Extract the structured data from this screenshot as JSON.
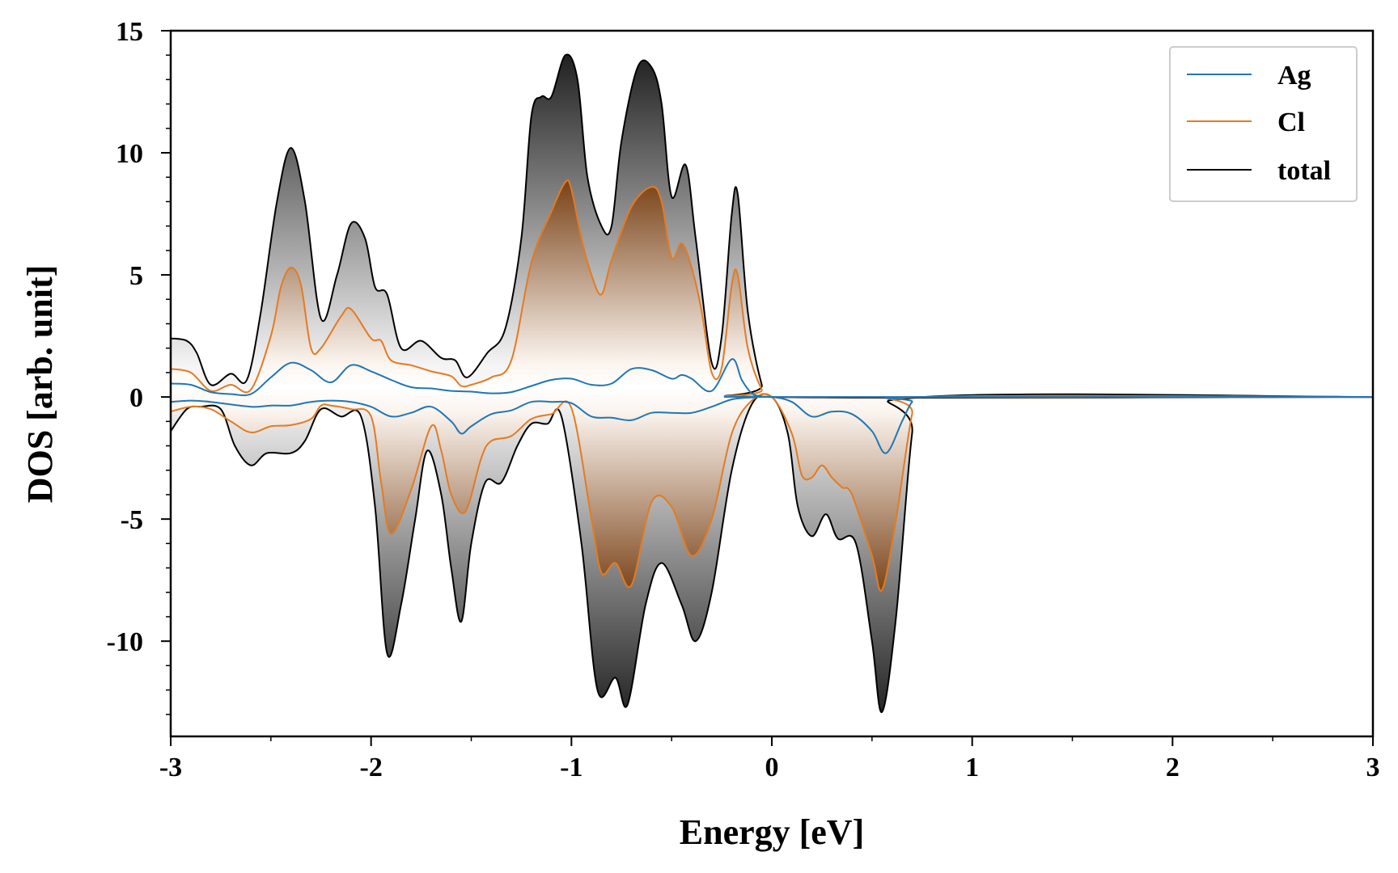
{
  "chart_data": {
    "type": "line",
    "title": "",
    "xlabel": "Energy [eV]",
    "ylabel": "DOS [arb. unit]",
    "xlim": [
      -3,
      3
    ],
    "ylim": [
      -13.9,
      15
    ],
    "x_ticks": [
      -3,
      -2,
      -1,
      0,
      1,
      2,
      3
    ],
    "x_tick_labels": [
      "-3",
      "-2",
      "-1",
      "0",
      "1",
      "2",
      "3"
    ],
    "y_ticks": [
      -10,
      -5,
      0,
      5,
      10,
      15
    ],
    "y_tick_labels": [
      "-10",
      "-5",
      "0",
      "5",
      "10",
      "15"
    ],
    "grid": false,
    "legend_position": "top-right",
    "series": [
      {
        "name": "Ag",
        "color": "#1f77b4",
        "up": [
          [
            -3,
            0.55
          ],
          [
            -2.9,
            0.5
          ],
          [
            -2.8,
            0.2
          ],
          [
            -2.7,
            0.12
          ],
          [
            -2.6,
            0.12
          ],
          [
            -2.5,
            0.8
          ],
          [
            -2.4,
            1.4
          ],
          [
            -2.3,
            1.1
          ],
          [
            -2.2,
            0.6
          ],
          [
            -2.1,
            1.3
          ],
          [
            -2.0,
            1.05
          ],
          [
            -1.9,
            0.7
          ],
          [
            -1.8,
            0.4
          ],
          [
            -1.7,
            0.35
          ],
          [
            -1.6,
            0.25
          ],
          [
            -1.5,
            0.22
          ],
          [
            -1.4,
            0.15
          ],
          [
            -1.3,
            0.2
          ],
          [
            -1.2,
            0.45
          ],
          [
            -1.1,
            0.7
          ],
          [
            -1.0,
            0.75
          ],
          [
            -0.9,
            0.5
          ],
          [
            -0.8,
            0.55
          ],
          [
            -0.7,
            1.15
          ],
          [
            -0.6,
            1.1
          ],
          [
            -0.5,
            0.75
          ],
          [
            -0.45,
            0.9
          ],
          [
            -0.4,
            0.75
          ],
          [
            -0.3,
            0.25
          ],
          [
            -0.2,
            1.55
          ],
          [
            -0.15,
            0.7
          ],
          [
            -0.1,
            0.15
          ],
          [
            -0.05,
            0.03
          ],
          [
            0,
            0
          ],
          [
            3,
            0
          ]
        ],
        "down": [
          [
            -3,
            -0.2
          ],
          [
            -2.9,
            -0.15
          ],
          [
            -2.8,
            -0.2
          ],
          [
            -2.6,
            -0.4
          ],
          [
            -2.5,
            -0.35
          ],
          [
            -2.4,
            -0.35
          ],
          [
            -2.3,
            -0.2
          ],
          [
            -2.2,
            -0.15
          ],
          [
            -2.1,
            -0.2
          ],
          [
            -2.0,
            -0.4
          ],
          [
            -1.9,
            -0.8
          ],
          [
            -1.8,
            -0.65
          ],
          [
            -1.7,
            -0.4
          ],
          [
            -1.6,
            -1.0
          ],
          [
            -1.55,
            -1.5
          ],
          [
            -1.5,
            -1.2
          ],
          [
            -1.4,
            -0.7
          ],
          [
            -1.3,
            -0.55
          ],
          [
            -1.2,
            -0.2
          ],
          [
            -1.1,
            -0.2
          ],
          [
            -1.0,
            -0.25
          ],
          [
            -0.9,
            -0.8
          ],
          [
            -0.8,
            -0.85
          ],
          [
            -0.7,
            -0.95
          ],
          [
            -0.6,
            -0.65
          ],
          [
            -0.5,
            -0.65
          ],
          [
            -0.4,
            -0.65
          ],
          [
            -0.3,
            -0.4
          ],
          [
            -0.2,
            -0.1
          ],
          [
            -0.1,
            -0.02
          ],
          [
            0,
            0
          ],
          [
            0.1,
            -0.2
          ],
          [
            0.2,
            -0.8
          ],
          [
            0.3,
            -0.6
          ],
          [
            0.4,
            -0.7
          ],
          [
            0.5,
            -1.4
          ],
          [
            0.57,
            -2.3
          ],
          [
            0.65,
            -1.0
          ],
          [
            0.7,
            -0.2
          ],
          [
            0.75,
            0
          ],
          [
            3,
            0
          ]
        ]
      },
      {
        "name": "Cl",
        "color": "#e37b22",
        "up": [
          [
            -3,
            1.15
          ],
          [
            -2.9,
            1.0
          ],
          [
            -2.8,
            0.25
          ],
          [
            -2.7,
            0.5
          ],
          [
            -2.6,
            0.3
          ],
          [
            -2.5,
            2.5
          ],
          [
            -2.45,
            4.5
          ],
          [
            -2.4,
            5.3
          ],
          [
            -2.35,
            4.6
          ],
          [
            -2.3,
            2.0
          ],
          [
            -2.25,
            2.0
          ],
          [
            -2.15,
            3.3
          ],
          [
            -2.1,
            3.6
          ],
          [
            -2.0,
            2.4
          ],
          [
            -1.95,
            2.3
          ],
          [
            -1.9,
            1.5
          ],
          [
            -1.8,
            1.3
          ],
          [
            -1.7,
            1.05
          ],
          [
            -1.6,
            0.85
          ],
          [
            -1.55,
            0.45
          ],
          [
            -1.5,
            0.5
          ],
          [
            -1.4,
            0.8
          ],
          [
            -1.3,
            1.5
          ],
          [
            -1.2,
            5.5
          ],
          [
            -1.1,
            7.6
          ],
          [
            -1.03,
            8.8
          ],
          [
            -1.0,
            8.5
          ],
          [
            -0.95,
            6.5
          ],
          [
            -0.9,
            5.0
          ],
          [
            -0.85,
            4.2
          ],
          [
            -0.8,
            5.6
          ],
          [
            -0.7,
            7.8
          ],
          [
            -0.6,
            8.6
          ],
          [
            -0.55,
            8.0
          ],
          [
            -0.5,
            5.7
          ],
          [
            -0.45,
            6.3
          ],
          [
            -0.4,
            5.3
          ],
          [
            -0.35,
            3.5
          ],
          [
            -0.3,
            1.0
          ],
          [
            -0.25,
            1.2
          ],
          [
            -0.2,
            4.6
          ],
          [
            -0.17,
            5.0
          ],
          [
            -0.12,
            2.0
          ],
          [
            -0.05,
            0.3
          ],
          [
            0,
            0
          ],
          [
            3,
            0
          ]
        ],
        "down": [
          [
            -3,
            -0.6
          ],
          [
            -2.9,
            -0.4
          ],
          [
            -2.8,
            -0.5
          ],
          [
            -2.7,
            -1.0
          ],
          [
            -2.6,
            -1.45
          ],
          [
            -2.5,
            -1.2
          ],
          [
            -2.4,
            -1.15
          ],
          [
            -2.3,
            -0.9
          ],
          [
            -2.25,
            -0.35
          ],
          [
            -2.2,
            -0.35
          ],
          [
            -2.1,
            -0.5
          ],
          [
            -2.0,
            -0.8
          ],
          [
            -1.95,
            -3.5
          ],
          [
            -1.9,
            -5.6
          ],
          [
            -1.8,
            -3.8
          ],
          [
            -1.7,
            -1.2
          ],
          [
            -1.65,
            -2.2
          ],
          [
            -1.6,
            -4.0
          ],
          [
            -1.53,
            -4.7
          ],
          [
            -1.45,
            -2.5
          ],
          [
            -1.4,
            -1.8
          ],
          [
            -1.3,
            -1.6
          ],
          [
            -1.2,
            -0.9
          ],
          [
            -1.1,
            -0.7
          ],
          [
            -1.0,
            -0.45
          ],
          [
            -0.9,
            -5.0
          ],
          [
            -0.85,
            -7.2
          ],
          [
            -0.78,
            -6.8
          ],
          [
            -0.7,
            -7.7
          ],
          [
            -0.6,
            -4.3
          ],
          [
            -0.5,
            -4.5
          ],
          [
            -0.4,
            -6.5
          ],
          [
            -0.3,
            -5.0
          ],
          [
            -0.2,
            -1.5
          ],
          [
            -0.1,
            -0.15
          ],
          [
            0,
            0
          ],
          [
            0.1,
            -1.5
          ],
          [
            0.15,
            -3.2
          ],
          [
            0.2,
            -3.3
          ],
          [
            0.25,
            -2.8
          ],
          [
            0.3,
            -3.3
          ],
          [
            0.35,
            -3.7
          ],
          [
            0.4,
            -4.0
          ],
          [
            0.5,
            -6.5
          ],
          [
            0.55,
            -7.9
          ],
          [
            0.62,
            -5.0
          ],
          [
            0.7,
            -0.7
          ],
          [
            0.75,
            0
          ],
          [
            3,
            0
          ]
        ]
      },
      {
        "name": "total",
        "color": "#000000",
        "up": [
          [
            -3,
            2.4
          ],
          [
            -2.92,
            2.3
          ],
          [
            -2.87,
            1.8
          ],
          [
            -2.8,
            0.5
          ],
          [
            -2.7,
            0.95
          ],
          [
            -2.62,
            0.7
          ],
          [
            -2.55,
            3.5
          ],
          [
            -2.47,
            8.0
          ],
          [
            -2.4,
            10.2
          ],
          [
            -2.33,
            8.0
          ],
          [
            -2.25,
            3.2
          ],
          [
            -2.17,
            5.0
          ],
          [
            -2.1,
            7.1
          ],
          [
            -2.03,
            6.5
          ],
          [
            -1.98,
            4.5
          ],
          [
            -1.92,
            4.2
          ],
          [
            -1.85,
            2.0
          ],
          [
            -1.75,
            2.3
          ],
          [
            -1.65,
            1.6
          ],
          [
            -1.58,
            1.5
          ],
          [
            -1.52,
            0.8
          ],
          [
            -1.42,
            1.8
          ],
          [
            -1.33,
            2.8
          ],
          [
            -1.25,
            6.5
          ],
          [
            -1.2,
            11.5
          ],
          [
            -1.15,
            12.3
          ],
          [
            -1.1,
            12.3
          ],
          [
            -1.03,
            14.0
          ],
          [
            -0.97,
            13.0
          ],
          [
            -0.92,
            9.0
          ],
          [
            -0.85,
            7.0
          ],
          [
            -0.8,
            7.0
          ],
          [
            -0.75,
            10.5
          ],
          [
            -0.67,
            13.5
          ],
          [
            -0.6,
            13.5
          ],
          [
            -0.55,
            12.0
          ],
          [
            -0.5,
            8.2
          ],
          [
            -0.43,
            9.5
          ],
          [
            -0.38,
            6.5
          ],
          [
            -0.3,
            1.4
          ],
          [
            -0.25,
            2.5
          ],
          [
            -0.2,
            7.5
          ],
          [
            -0.17,
            8.3
          ],
          [
            -0.12,
            3.5
          ],
          [
            -0.05,
            0.5
          ],
          [
            0,
            0
          ],
          [
            3,
            0
          ]
        ],
        "down": [
          [
            -3,
            -1.4
          ],
          [
            -2.92,
            -0.5
          ],
          [
            -2.85,
            -0.4
          ],
          [
            -2.75,
            -0.5
          ],
          [
            -2.68,
            -2.0
          ],
          [
            -2.6,
            -2.8
          ],
          [
            -2.52,
            -2.3
          ],
          [
            -2.4,
            -2.3
          ],
          [
            -2.33,
            -1.8
          ],
          [
            -2.25,
            -0.5
          ],
          [
            -2.15,
            -0.8
          ],
          [
            -2.05,
            -0.8
          ],
          [
            -1.98,
            -4.5
          ],
          [
            -1.92,
            -10.5
          ],
          [
            -1.85,
            -8.5
          ],
          [
            -1.78,
            -5.0
          ],
          [
            -1.72,
            -2.2
          ],
          [
            -1.65,
            -4.0
          ],
          [
            -1.6,
            -7.0
          ],
          [
            -1.55,
            -9.2
          ],
          [
            -1.5,
            -6.0
          ],
          [
            -1.43,
            -3.5
          ],
          [
            -1.35,
            -3.5
          ],
          [
            -1.27,
            -2.0
          ],
          [
            -1.2,
            -1.1
          ],
          [
            -1.12,
            -1.1
          ],
          [
            -1.05,
            -0.8
          ],
          [
            -0.95,
            -6.0
          ],
          [
            -0.87,
            -12.0
          ],
          [
            -0.78,
            -11.5
          ],
          [
            -0.72,
            -12.6
          ],
          [
            -0.63,
            -8.5
          ],
          [
            -0.55,
            -6.8
          ],
          [
            -0.45,
            -8.5
          ],
          [
            -0.38,
            -10.0
          ],
          [
            -0.3,
            -8.0
          ],
          [
            -0.2,
            -3.0
          ],
          [
            -0.1,
            -0.3
          ],
          [
            0,
            0
          ],
          [
            0.08,
            -1.5
          ],
          [
            0.13,
            -4.5
          ],
          [
            0.2,
            -5.7
          ],
          [
            0.27,
            -4.8
          ],
          [
            0.33,
            -5.8
          ],
          [
            0.42,
            -6.0
          ],
          [
            0.5,
            -10.0
          ],
          [
            0.55,
            -12.9
          ],
          [
            0.62,
            -9.0
          ],
          [
            0.7,
            -1.5
          ],
          [
            0.76,
            0
          ],
          [
            3,
            0
          ]
        ]
      }
    ]
  }
}
